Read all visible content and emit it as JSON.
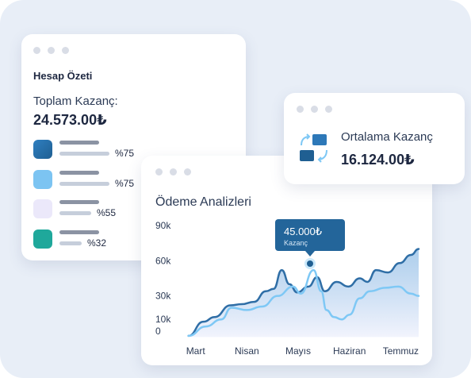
{
  "summary_card": {
    "title": "Hesap Özeti",
    "total_label": "Toplam Kazanç:",
    "total": "24.573.00₺",
    "items": [
      {
        "color": "#1f5f92",
        "label": "%75"
      },
      {
        "color": "#7cc4f2",
        "label": "%75"
      },
      {
        "color": "#ebe8fa",
        "label": "%55"
      },
      {
        "color": "#1fa89b",
        "label": "%32"
      }
    ]
  },
  "average_card": {
    "label": "Ortalama Kazanç",
    "value": "16.124.00₺"
  },
  "chart_data": {
    "type": "line",
    "title": "Ödeme Analizleri",
    "tooltip": {
      "value": "45.000₺",
      "label": "Kazanç"
    },
    "xlim": [
      -0.15,
      4.35
    ],
    "xticks": [
      {
        "value": 0,
        "label": "Mart"
      },
      {
        "value": 1,
        "label": "Nisan"
      },
      {
        "value": 2,
        "label": "Mayıs"
      },
      {
        "value": 3,
        "label": "Haziran"
      },
      {
        "value": 4,
        "label": "Temmuz"
      }
    ],
    "ylim": [
      -5000,
      90000
    ],
    "yticks": [
      0,
      {
        "value": 10000,
        "label": "10k"
      },
      {
        "value": 30000,
        "label": "30k"
      },
      {
        "value": 60000,
        "label": "60k"
      },
      {
        "value": 90000,
        "label": "90k"
      }
    ],
    "series": [
      {
        "color": "#2f6ea6",
        "area": true,
        "x": [
          -0.14,
          0.15,
          0.37,
          0.68,
          0.9,
          1.14,
          1.37,
          1.52,
          1.68,
          1.83,
          1.98,
          2.2,
          2.37,
          2.52,
          2.75,
          2.98,
          3.2,
          3.35,
          3.52,
          3.75,
          3.98,
          4.2,
          4.35
        ],
        "values": [
          -4000,
          8000,
          12000,
          22000,
          23000,
          25000,
          34000,
          36000,
          52000,
          40000,
          33000,
          38000,
          46000,
          34000,
          42000,
          38000,
          45000,
          42000,
          52000,
          50000,
          58000,
          65000,
          70000
        ]
      },
      {
        "color": "#7ec8f5",
        "area": false,
        "x": [
          -0.14,
          0.2,
          0.5,
          0.7,
          1.0,
          1.3,
          1.6,
          1.9,
          2.05,
          2.3,
          2.45,
          2.55,
          2.7,
          2.85,
          3.0,
          3.2,
          3.4,
          3.7,
          3.95,
          4.2,
          4.35
        ],
        "values": [
          -4000,
          4000,
          10000,
          20000,
          18000,
          21000,
          30000,
          38000,
          32000,
          52000,
          34000,
          18000,
          12000,
          10000,
          14000,
          28000,
          34000,
          37000,
          38000,
          32000,
          30000
        ]
      }
    ]
  }
}
